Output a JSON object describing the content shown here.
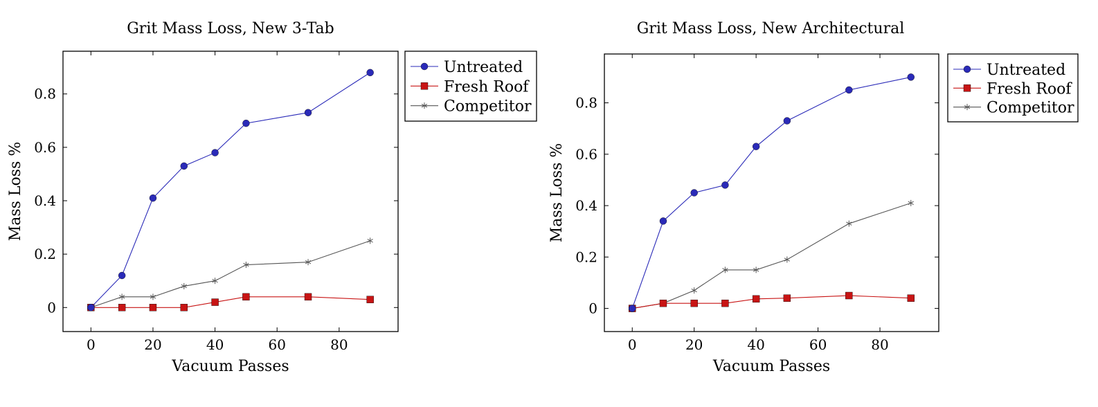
{
  "chart_data": [
    {
      "type": "line",
      "title": "Grit Mass Loss, New 3-Tab",
      "xlabel": "Vacuum Passes",
      "ylabel": "Mass Loss %",
      "xlim": [
        -9,
        99
      ],
      "ylim": [
        -0.09,
        0.96
      ],
      "xticks": [
        0,
        20,
        40,
        60,
        80
      ],
      "yticks": [
        0,
        0.2,
        0.4,
        0.6,
        0.8
      ],
      "xtick_labels": [
        "0",
        "20",
        "40",
        "60",
        "80"
      ],
      "ytick_labels": [
        "0",
        "0.2",
        "0.4",
        "0.6",
        "0.8"
      ],
      "legend_position": "outside-right-top",
      "series": [
        {
          "name": "Untreated",
          "color": "#2a2ab8",
          "marker": "circle",
          "x": [
            0,
            10,
            20,
            30,
            40,
            50,
            70,
            90
          ],
          "y": [
            0,
            0.12,
            0.41,
            0.53,
            0.58,
            0.69,
            0.73,
            0.88
          ]
        },
        {
          "name": "Fresh Roof",
          "color": "#c81414",
          "marker": "square",
          "x": [
            0,
            10,
            20,
            30,
            40,
            50,
            70,
            90
          ],
          "y": [
            0,
            0,
            0,
            0,
            0.02,
            0.04,
            0.04,
            0.03
          ]
        },
        {
          "name": "Competitor",
          "color": "#555555",
          "marker": "asterisk",
          "x": [
            0,
            10,
            20,
            30,
            40,
            50,
            70,
            90
          ],
          "y": [
            0,
            0.04,
            0.04,
            0.08,
            0.1,
            0.16,
            0.17,
            0.25
          ]
        }
      ]
    },
    {
      "type": "line",
      "title": "Grit Mass Loss, New Architectural",
      "xlabel": "Vacuum Passes",
      "ylabel": "Mass Loss %",
      "xlim": [
        -9,
        99
      ],
      "ylim": [
        -0.09,
        0.99
      ],
      "xticks": [
        0,
        20,
        40,
        60,
        80
      ],
      "yticks": [
        0,
        0.2,
        0.4,
        0.6,
        0.8
      ],
      "xtick_labels": [
        "0",
        "20",
        "40",
        "60",
        "80"
      ],
      "ytick_labels": [
        "0",
        "0.2",
        "0.4",
        "0.6",
        "0.8"
      ],
      "legend_position": "outside-right-top",
      "series": [
        {
          "name": "Untreated",
          "color": "#2a2ab8",
          "marker": "circle",
          "x": [
            0,
            10,
            20,
            30,
            40,
            50,
            70,
            90
          ],
          "y": [
            0,
            0.34,
            0.45,
            0.48,
            0.63,
            0.73,
            0.85,
            0.9
          ]
        },
        {
          "name": "Fresh Roof",
          "color": "#c81414",
          "marker": "square",
          "x": [
            0,
            10,
            20,
            30,
            40,
            50,
            70,
            90
          ],
          "y": [
            0,
            0.02,
            0.02,
            0.02,
            0.037,
            0.04,
            0.05,
            0.04
          ]
        },
        {
          "name": "Competitor",
          "color": "#555555",
          "marker": "asterisk",
          "x": [
            0,
            10,
            20,
            30,
            40,
            50,
            70,
            90
          ],
          "y": [
            0,
            0.02,
            0.07,
            0.15,
            0.15,
            0.19,
            0.33,
            0.41
          ]
        }
      ]
    }
  ]
}
